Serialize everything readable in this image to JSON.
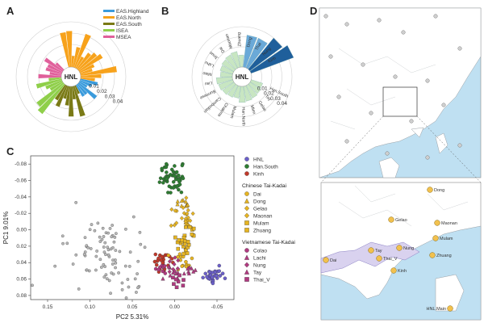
{
  "panels": {
    "a": "A",
    "b": "B",
    "c": "C",
    "d": "D"
  },
  "panel_a": {
    "center_label": "HNL",
    "ring_labels": [
      "0.01",
      "0.02",
      "0.03",
      "0.04"
    ],
    "legend": [
      {
        "name": "EAS.Highland",
        "color": "#3a9bdc"
      },
      {
        "name": "EAS.North",
        "color": "#f7a21b"
      },
      {
        "name": "EAS.South",
        "color": "#7a7a16"
      },
      {
        "name": "ISEA",
        "color": "#8fcf4a"
      },
      {
        "name": "MSEA",
        "color": "#e0609b"
      }
    ]
  },
  "panel_b": {
    "center_label": "HNL",
    "ring_labels": [
      "0.01",
      "0.02",
      "0.03",
      "0.04"
    ],
    "groups": [
      "Han.South",
      "Tay",
      "Gelao",
      "Mien",
      "Han.North",
      "Mulam",
      "Chakma",
      "Cambodian",
      "Burmese",
      "Lisu",
      "Miao",
      "Lahu",
      "Jinuo",
      "Dai",
      "Maonan",
      "Zhuang",
      "Dong",
      "Thai",
      "Nung",
      "Kinh"
    ],
    "colors": {
      "light": "#c8e6c2",
      "mid": "#6aa9d8",
      "dark": "#1f5f9b"
    }
  },
  "chart_data": {
    "type": "scatter",
    "xlabel": "PC2  5.31%",
    "ylabel": "PC1  9.01%",
    "x_ticks": [
      "0.15",
      "0.10",
      "0.05",
      "0.00",
      "-0.05"
    ],
    "y_ticks": [
      "-0.08",
      "-0.06",
      "-0.04",
      "-0.02",
      "0.00",
      "0.02",
      "0.04",
      "0.06",
      "0.08"
    ],
    "xlim": [
      0.17,
      -0.07
    ],
    "ylim": [
      -0.09,
      0.085
    ],
    "series": [
      {
        "name": "HNL",
        "color": "#6b5fc9",
        "shape": "circle",
        "cx": -0.045,
        "cy": 0.055,
        "sx": 0.008,
        "sy": 0.008,
        "n": 30
      },
      {
        "name": "Han.South",
        "color": "#2e7d32",
        "shape": "circle",
        "cx": 0.003,
        "cy": -0.062,
        "sx": 0.01,
        "sy": 0.012,
        "n": 55
      },
      {
        "name": "Kinh",
        "color": "#c0392b",
        "shape": "circle",
        "cx": 0.012,
        "cy": 0.04,
        "sx": 0.01,
        "sy": 0.01,
        "n": 25
      },
      {
        "name": "Dai",
        "color": "#e6b422",
        "shape": "circle",
        "cx": -0.01,
        "cy": 0.038,
        "sx": 0.008,
        "sy": 0.008,
        "n": 15
      },
      {
        "name": "Dong",
        "color": "#e6b422",
        "shape": "triangle",
        "cx": -0.015,
        "cy": -0.03,
        "sx": 0.008,
        "sy": 0.01,
        "n": 12
      },
      {
        "name": "Gelao",
        "color": "#e6b422",
        "shape": "diamond",
        "cx": -0.005,
        "cy": -0.02,
        "sx": 0.008,
        "sy": 0.01,
        "n": 12
      },
      {
        "name": "Maonan",
        "color": "#e6b422",
        "shape": "diamond",
        "cx": -0.015,
        "cy": -0.01,
        "sx": 0.008,
        "sy": 0.01,
        "n": 12
      },
      {
        "name": "Mulam",
        "color": "#e6b422",
        "shape": "square",
        "cx": -0.018,
        "cy": 0.0,
        "sx": 0.006,
        "sy": 0.006,
        "n": 8
      },
      {
        "name": "Zhuang",
        "color": "#e6b422",
        "shape": "square",
        "cx": -0.01,
        "cy": 0.02,
        "sx": 0.008,
        "sy": 0.01,
        "n": 18
      },
      {
        "name": "Colao",
        "color": "#b03a80",
        "shape": "circle",
        "cx": 0.018,
        "cy": 0.048,
        "sx": 0.006,
        "sy": 0.006,
        "n": 8
      },
      {
        "name": "Lachi",
        "color": "#b03a80",
        "shape": "triangle",
        "cx": -0.02,
        "cy": 0.05,
        "sx": 0.008,
        "sy": 0.008,
        "n": 8
      },
      {
        "name": "Nung",
        "color": "#b03a80",
        "shape": "diamond",
        "cx": 0.0,
        "cy": 0.045,
        "sx": 0.008,
        "sy": 0.008,
        "n": 8
      },
      {
        "name": "Tay",
        "color": "#b03a80",
        "shape": "triangle",
        "cx": 0.005,
        "cy": 0.055,
        "sx": 0.008,
        "sy": 0.008,
        "n": 8
      },
      {
        "name": "Thai_V",
        "color": "#b03a80",
        "shape": "square",
        "cx": -0.005,
        "cy": 0.062,
        "sx": 0.008,
        "sy": 0.006,
        "n": 8
      },
      {
        "name": "",
        "color": "#b8b8b8",
        "shape": "circle",
        "cx": 0.08,
        "cy": 0.03,
        "sx": 0.035,
        "sy": 0.03,
        "n": 90
      }
    ],
    "legend_groups": [
      {
        "title": "",
        "items": [
          "HNL",
          "Han.South",
          "Kinh"
        ]
      },
      {
        "title": "Chinese Tai-Kadai",
        "items": [
          "Dai",
          "Dong",
          "Gelao",
          "Maonan",
          "Mulam",
          "Zhuang"
        ]
      },
      {
        "title": "Vietnamese Tai-Kadai",
        "items": [
          "Colao",
          "Lachi",
          "Nung",
          "Tay",
          "Thai_V"
        ]
      }
    ]
  },
  "panel_d": {
    "inset_labels": [
      {
        "name": "Dong"
      },
      {
        "name": "Gelao"
      },
      {
        "name": "Maonan"
      },
      {
        "name": "Mulam"
      },
      {
        "name": "Zhuang"
      },
      {
        "name": "Nung"
      },
      {
        "name": "Tay"
      },
      {
        "name": "Thai_V"
      },
      {
        "name": "Kinh"
      },
      {
        "name": "Dai"
      },
      {
        "name": "HNL.Main"
      }
    ],
    "colors": {
      "sea": "#bfe0f2",
      "land": "#ffffff",
      "border": "#9aa0a6",
      "marker": "#f2c14e"
    }
  }
}
